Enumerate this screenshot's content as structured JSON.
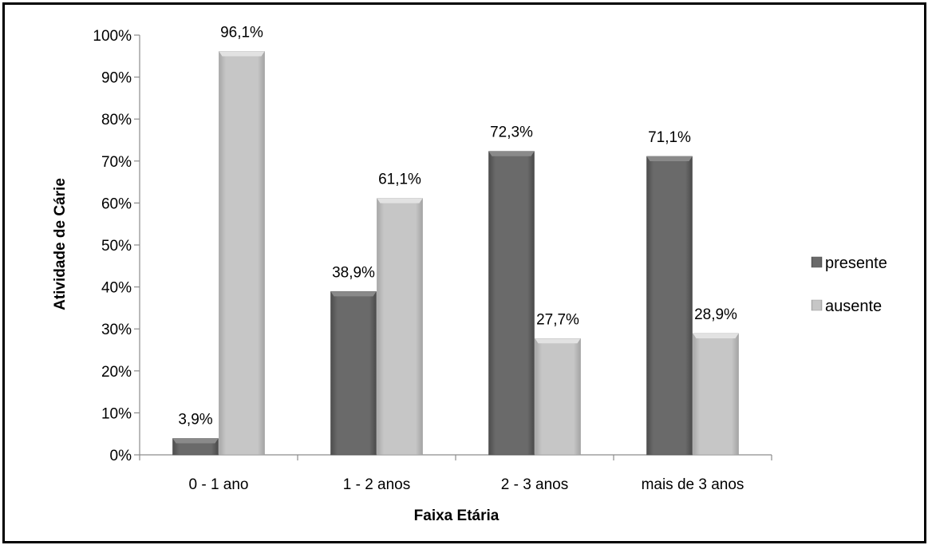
{
  "chart_data": {
    "type": "bar",
    "title": "",
    "xlabel": "Faixa Etária",
    "ylabel": "Atividade de Cárie",
    "categories": [
      "0 - 1 ano",
      "1 - 2 anos",
      "2 - 3 anos",
      "mais de 3 anos"
    ],
    "series": [
      {
        "name": "presente",
        "values": [
          3.9,
          38.9,
          72.3,
          71.1
        ],
        "labels": [
          "3,9%",
          "38,9%",
          "72,3%",
          "71,1%"
        ],
        "color": "#6e6e6e"
      },
      {
        "name": "ausente",
        "values": [
          96.1,
          61.1,
          27.7,
          28.9
        ],
        "labels": [
          "96,1%",
          "61,1%",
          "27,7%",
          "28,9%"
        ],
        "color": "#c4c4c4"
      }
    ],
    "ylim": [
      0,
      100
    ],
    "yticks": [
      "0%",
      "10%",
      "20%",
      "30%",
      "40%",
      "50%",
      "60%",
      "70%",
      "80%",
      "90%",
      "100%"
    ],
    "grid": false,
    "legend": "right"
  }
}
